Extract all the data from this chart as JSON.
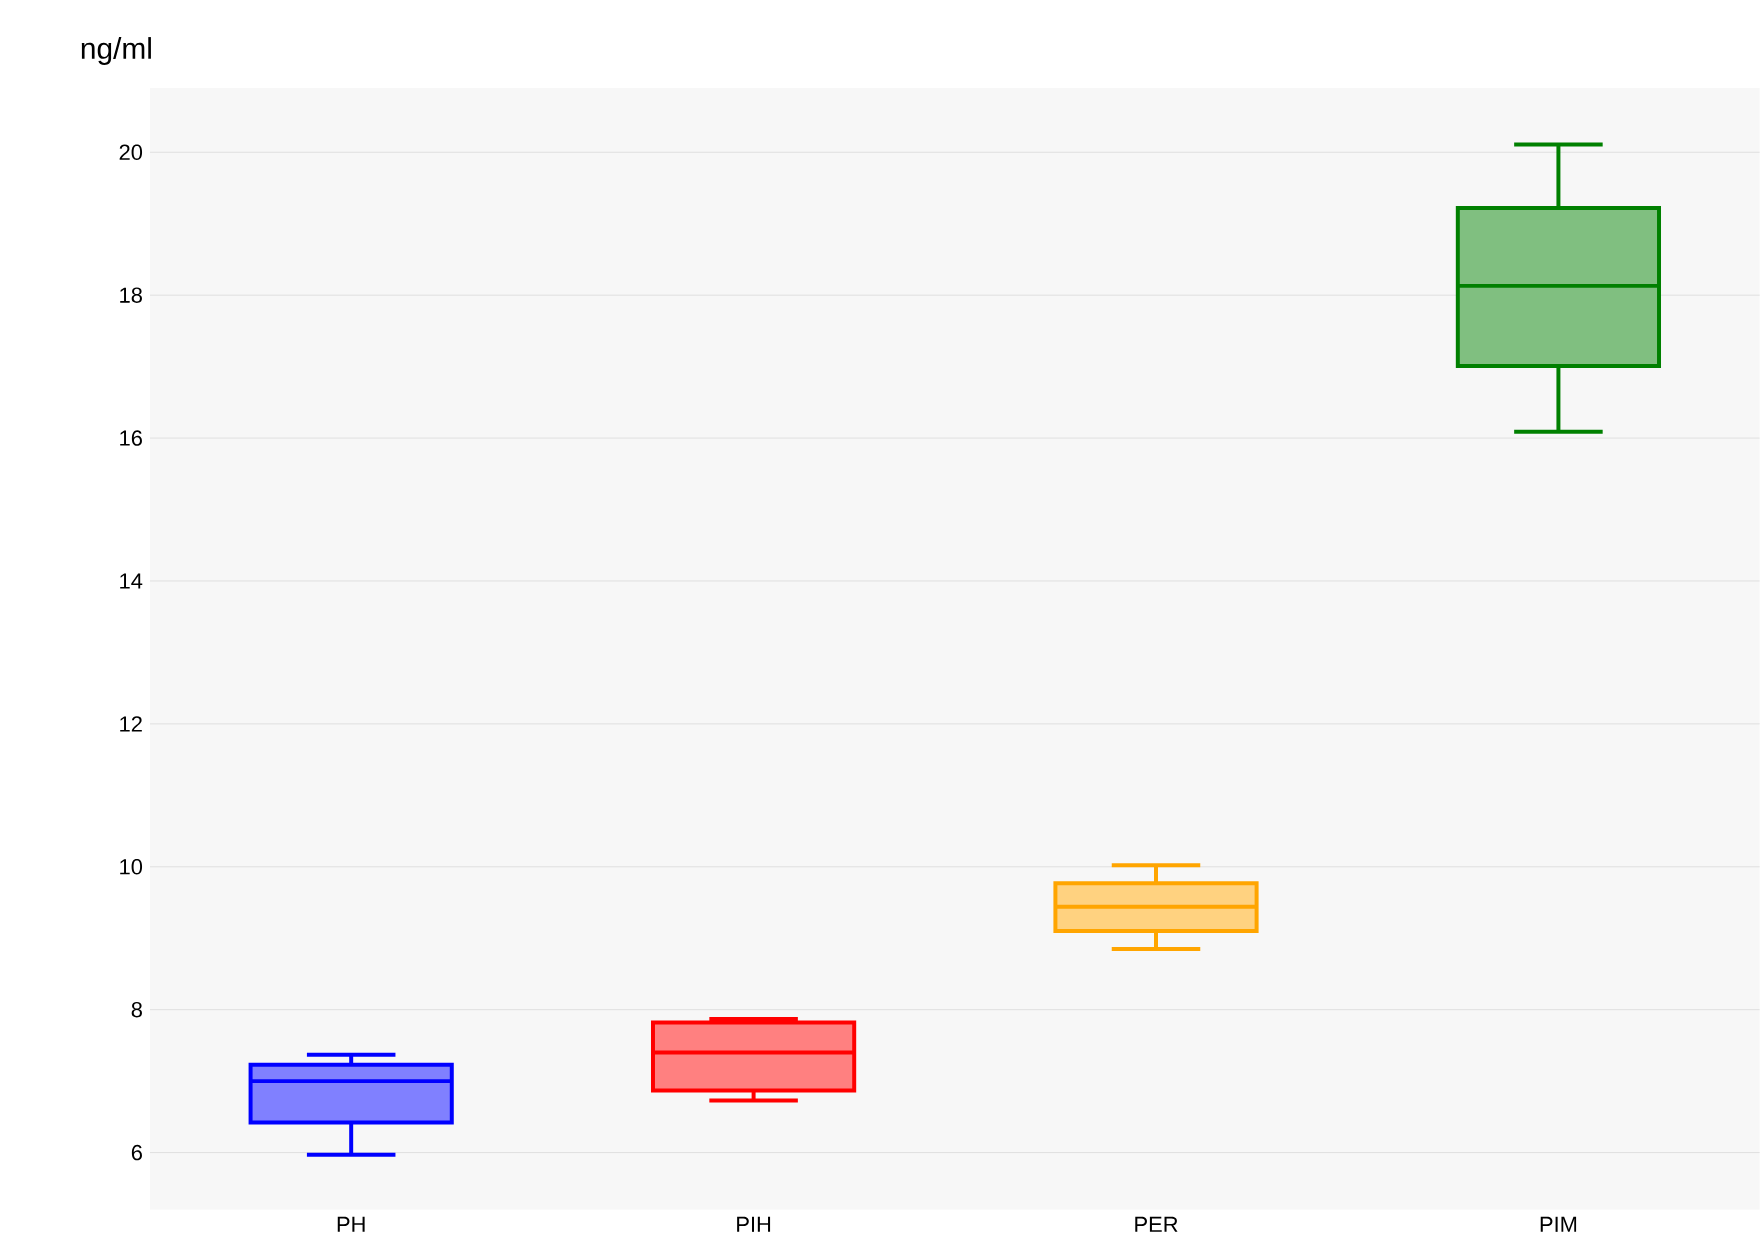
{
  "chart_data": {
    "type": "box",
    "ylabel": "ng/ml",
    "categories": [
      "PH",
      "PIH",
      "PER",
      "PIM"
    ],
    "colors": [
      "#0000ff",
      "#ff0000",
      "#ffa500",
      "#008000"
    ],
    "boxes": [
      {
        "low": 5.97,
        "q1": 6.42,
        "median": 7.0,
        "q3": 7.23,
        "high": 7.37
      },
      {
        "low": 6.73,
        "q1": 6.87,
        "median": 7.4,
        "q3": 7.82,
        "high": 7.87
      },
      {
        "low": 8.85,
        "q1": 9.1,
        "median": 9.44,
        "q3": 9.77,
        "high": 10.02
      },
      {
        "low": 16.09,
        "q1": 17.01,
        "median": 18.13,
        "q3": 19.22,
        "high": 20.11
      }
    ],
    "ylim": [
      5.2,
      20.9
    ],
    "yticks": [
      6,
      8,
      10,
      12,
      14,
      16,
      18,
      20
    ],
    "grid": "y"
  }
}
